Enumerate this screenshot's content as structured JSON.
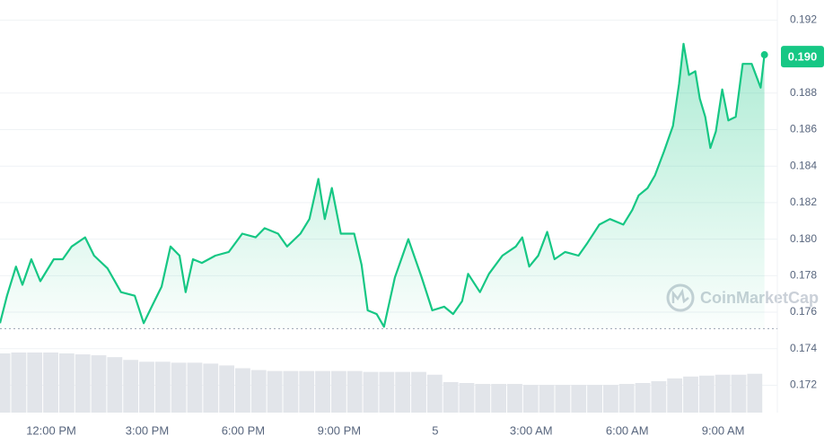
{
  "chart_data": {
    "type": "line",
    "color": "#16c784",
    "x": [
      10.4,
      10.62,
      10.9,
      11.1,
      11.38,
      11.66,
      12.08,
      12.36,
      12.64,
      13.06,
      13.34,
      13.76,
      14.18,
      14.61,
      14.89,
      15.17,
      15.45,
      15.73,
      16.01,
      16.2,
      16.43,
      16.71,
      17.13,
      17.55,
      17.97,
      18.39,
      18.67,
      19.09,
      19.37,
      19.79,
      20.07,
      20.35,
      20.55,
      20.77,
      21.05,
      21.47,
      21.7,
      21.89,
      22.17,
      22.4,
      22.74,
      23.16,
      23.58,
      23.91,
      24.28,
      24.56,
      24.84,
      25.03,
      25.4,
      25.68,
      26.1,
      26.52,
      26.72,
      26.94,
      27.22,
      27.5,
      27.73,
      28.06,
      28.48,
      28.76,
      29.13,
      29.46,
      29.88,
      30.16,
      30.36,
      30.64,
      30.87,
      31.15,
      31.43,
      31.62,
      31.76,
      31.93,
      32.13,
      32.27,
      32.44,
      32.6,
      32.77,
      32.97,
      33.16,
      33.39,
      33.61,
      33.89,
      34.17,
      34.29
    ],
    "values": [
      0.1754,
      0.1769,
      0.1785,
      0.1775,
      0.1789,
      0.1777,
      0.1789,
      0.1789,
      0.1796,
      0.1801,
      0.1791,
      0.1784,
      0.1771,
      0.1769,
      0.1754,
      0.1764,
      0.1774,
      0.1796,
      0.1791,
      0.1771,
      0.1789,
      0.1787,
      0.1791,
      0.1793,
      0.1803,
      0.1801,
      0.1806,
      0.1803,
      0.1796,
      0.1803,
      0.1811,
      0.1833,
      0.1811,
      0.1828,
      0.1803,
      0.1803,
      0.1786,
      0.1761,
      0.1759,
      0.1752,
      0.1779,
      0.18,
      0.1779,
      0.1761,
      0.1763,
      0.1759,
      0.1766,
      0.1781,
      0.1771,
      0.1781,
      0.1791,
      0.1796,
      0.1801,
      0.1785,
      0.1791,
      0.1804,
      0.1789,
      0.1793,
      0.1791,
      0.1798,
      0.1808,
      0.1811,
      0.1808,
      0.1816,
      0.1824,
      0.1828,
      0.1835,
      0.1848,
      0.1862,
      0.1885,
      0.1907,
      0.189,
      0.1892,
      0.1877,
      0.1867,
      0.185,
      0.1859,
      0.1882,
      0.1865,
      0.1867,
      0.1896,
      0.1896,
      0.1883,
      0.1901
    ],
    "xlim": [
      10.4,
      34.3
    ],
    "ylim": [
      0.1705,
      0.1931
    ],
    "xticks": [
      {
        "value": 12,
        "label": "12:00 PM"
      },
      {
        "value": 15,
        "label": "3:00 PM"
      },
      {
        "value": 18,
        "label": "6:00 PM"
      },
      {
        "value": 21,
        "label": "9:00 PM"
      },
      {
        "value": 24,
        "label": "5"
      },
      {
        "value": 27,
        "label": "3:00 AM"
      },
      {
        "value": 30,
        "label": "6:00 AM"
      },
      {
        "value": 33,
        "label": "9:00 AM"
      }
    ],
    "yticks": [
      0.172,
      0.174,
      0.176,
      0.178,
      {
        "value": 0.18,
        "label": "0.180"
      },
      0.182,
      0.184,
      0.186,
      0.188,
      0.192
    ],
    "grid": true,
    "current_price": {
      "value": 0.19,
      "label": "0.190"
    },
    "reference_line": 0.1751,
    "watermark": "CoinMarketCap",
    "volume": {
      "color": "#e2e5ea",
      "x": [
        10.5,
        11,
        11.5,
        12,
        12.5,
        13,
        13.5,
        14,
        14.5,
        15,
        15.5,
        16,
        16.5,
        17,
        17.5,
        18,
        18.5,
        19,
        19.5,
        20,
        20.5,
        21,
        21.5,
        22,
        22.5,
        23,
        23.5,
        24,
        24.5,
        25,
        25.5,
        26,
        26.5,
        27,
        27.5,
        28,
        28.5,
        29,
        29.5,
        30,
        30.5,
        31,
        31.5,
        32,
        32.5,
        33,
        33.5,
        34
      ],
      "values": [
        64,
        65,
        65,
        65,
        64,
        63,
        62,
        60,
        57,
        55,
        55,
        54,
        54,
        53,
        51,
        48,
        46,
        45,
        45,
        45,
        45,
        45,
        45,
        44,
        44,
        44,
        44,
        41,
        33,
        32,
        31,
        31,
        31,
        30,
        30,
        30,
        30,
        30,
        30,
        31,
        32,
        34,
        37,
        39,
        40,
        41,
        41,
        42
      ]
    }
  }
}
